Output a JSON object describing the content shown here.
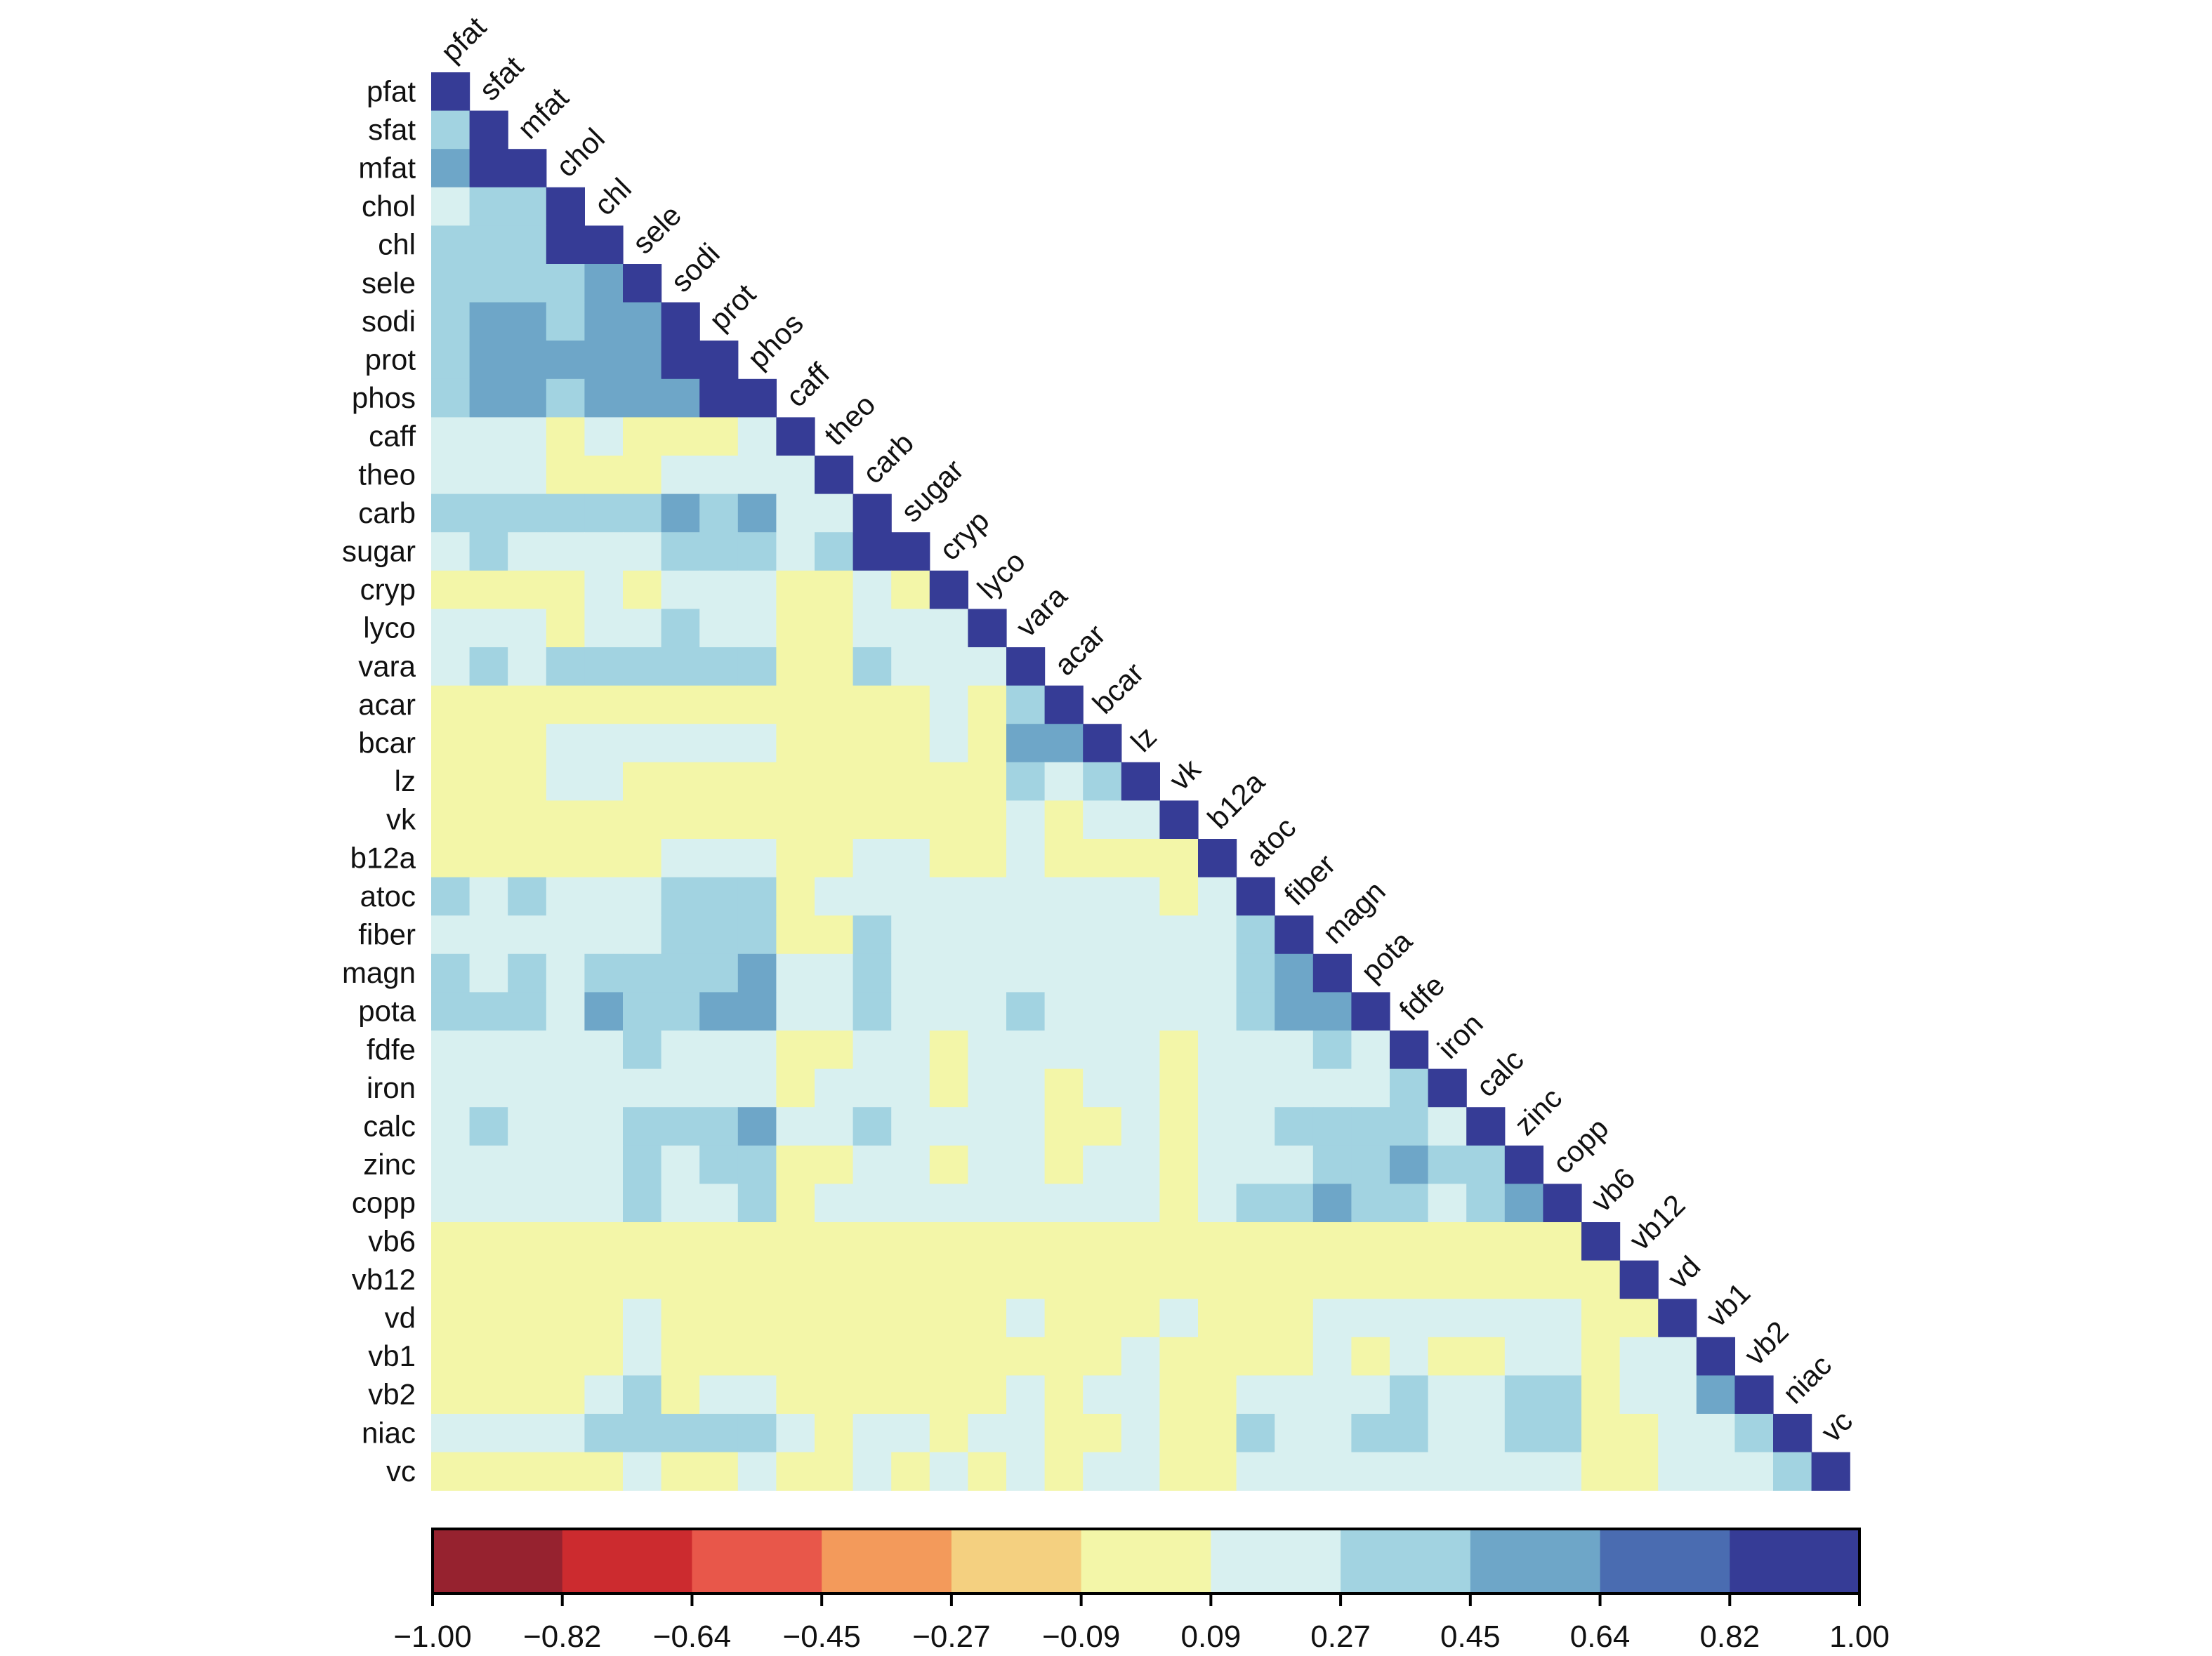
{
  "chart_data": {
    "type": "heatmap",
    "subtype": "lower-triangular correlation matrix",
    "variables": [
      "pfat",
      "sfat",
      "mfat",
      "chol",
      "chl",
      "sele",
      "sodi",
      "prot",
      "phos",
      "caff",
      "theo",
      "carb",
      "sugar",
      "cryp",
      "lyco",
      "vara",
      "acar",
      "bcar",
      "lz",
      "vk",
      "b12a",
      "atoc",
      "fiber",
      "magn",
      "pota",
      "fdfe",
      "iron",
      "calc",
      "zinc",
      "copp",
      "vb6",
      "vb12",
      "vd",
      "vb1",
      "vb2",
      "niac",
      "vc"
    ],
    "bin_colors": [
      "#96222f",
      "#cc2b2f",
      "#e8574a",
      "#f39a5b",
      "#f4d080",
      "#f3f6a8",
      "#d8f0f0",
      "#a2d3e1",
      "#6ea6c8",
      "#4a6cb1",
      "#363c96"
    ],
    "rows_bin_index": [
      [
        10
      ],
      [
        7,
        10
      ],
      [
        8,
        10,
        10
      ],
      [
        6,
        7,
        7,
        10
      ],
      [
        7,
        7,
        7,
        10,
        10
      ],
      [
        7,
        7,
        7,
        7,
        8,
        10
      ],
      [
        7,
        8,
        8,
        7,
        8,
        8,
        10
      ],
      [
        7,
        8,
        8,
        8,
        8,
        8,
        10,
        10
      ],
      [
        7,
        8,
        8,
        7,
        8,
        8,
        8,
        10,
        10
      ],
      [
        6,
        6,
        6,
        5,
        6,
        5,
        5,
        5,
        6,
        10
      ],
      [
        6,
        6,
        6,
        5,
        5,
        5,
        6,
        6,
        6,
        6,
        10
      ],
      [
        7,
        7,
        7,
        7,
        7,
        7,
        8,
        7,
        8,
        6,
        6,
        10
      ],
      [
        6,
        7,
        6,
        6,
        6,
        6,
        7,
        7,
        7,
        6,
        7,
        10,
        10
      ],
      [
        5,
        5,
        5,
        5,
        6,
        5,
        6,
        6,
        6,
        5,
        5,
        6,
        5,
        10
      ],
      [
        6,
        6,
        6,
        5,
        6,
        6,
        7,
        6,
        6,
        5,
        5,
        6,
        6,
        6,
        10
      ],
      [
        6,
        7,
        6,
        7,
        7,
        7,
        7,
        7,
        7,
        5,
        5,
        7,
        6,
        6,
        6,
        10
      ],
      [
        5,
        5,
        5,
        5,
        5,
        5,
        5,
        5,
        5,
        5,
        5,
        5,
        5,
        6,
        5,
        7,
        10
      ],
      [
        5,
        5,
        5,
        6,
        6,
        6,
        6,
        6,
        6,
        5,
        5,
        5,
        5,
        6,
        5,
        8,
        8,
        10
      ],
      [
        5,
        5,
        5,
        6,
        6,
        5,
        5,
        5,
        5,
        5,
        5,
        5,
        5,
        5,
        5,
        7,
        6,
        7,
        10
      ],
      [
        5,
        5,
        5,
        5,
        5,
        5,
        5,
        5,
        5,
        5,
        5,
        5,
        5,
        5,
        5,
        6,
        5,
        6,
        6,
        10
      ],
      [
        5,
        5,
        5,
        5,
        5,
        5,
        6,
        6,
        6,
        5,
        5,
        6,
        6,
        5,
        5,
        6,
        5,
        5,
        5,
        5,
        10
      ],
      [
        7,
        6,
        7,
        6,
        6,
        6,
        7,
        7,
        7,
        5,
        6,
        6,
        6,
        6,
        6,
        6,
        6,
        6,
        6,
        5,
        6,
        10
      ],
      [
        6,
        6,
        6,
        6,
        6,
        6,
        7,
        7,
        7,
        5,
        5,
        7,
        6,
        6,
        6,
        6,
        6,
        6,
        6,
        6,
        6,
        7,
        10
      ],
      [
        7,
        6,
        7,
        6,
        7,
        7,
        7,
        7,
        8,
        6,
        6,
        7,
        6,
        6,
        6,
        6,
        6,
        6,
        6,
        6,
        6,
        7,
        8,
        10
      ],
      [
        7,
        7,
        7,
        6,
        8,
        7,
        7,
        8,
        8,
        6,
        6,
        7,
        6,
        6,
        6,
        7,
        6,
        6,
        6,
        6,
        6,
        7,
        8,
        8,
        10
      ],
      [
        6,
        6,
        6,
        6,
        6,
        7,
        6,
        6,
        6,
        5,
        5,
        6,
        6,
        5,
        6,
        6,
        6,
        6,
        6,
        5,
        6,
        6,
        6,
        7,
        6,
        10
      ],
      [
        6,
        6,
        6,
        6,
        6,
        6,
        6,
        6,
        6,
        5,
        6,
        6,
        6,
        5,
        6,
        6,
        5,
        6,
        6,
        5,
        6,
        6,
        6,
        6,
        6,
        7,
        10
      ],
      [
        6,
        7,
        6,
        6,
        6,
        7,
        7,
        7,
        8,
        6,
        6,
        7,
        6,
        6,
        6,
        6,
        5,
        5,
        6,
        5,
        6,
        6,
        7,
        7,
        7,
        7,
        6,
        10
      ],
      [
        6,
        6,
        6,
        6,
        6,
        7,
        6,
        7,
        7,
        5,
        5,
        6,
        6,
        5,
        6,
        6,
        5,
        6,
        6,
        5,
        6,
        6,
        6,
        7,
        7,
        8,
        7,
        7,
        10
      ],
      [
        6,
        6,
        6,
        6,
        6,
        7,
        6,
        6,
        7,
        5,
        6,
        6,
        6,
        6,
        6,
        6,
        6,
        6,
        6,
        5,
        6,
        7,
        7,
        8,
        7,
        7,
        6,
        7,
        8,
        10
      ],
      [
        5,
        5,
        5,
        5,
        5,
        5,
        5,
        5,
        5,
        5,
        5,
        5,
        5,
        5,
        5,
        5,
        5,
        5,
        5,
        5,
        5,
        5,
        5,
        5,
        5,
        5,
        5,
        5,
        5,
        5,
        10
      ],
      [
        5,
        5,
        5,
        5,
        5,
        5,
        5,
        5,
        5,
        5,
        5,
        5,
        5,
        5,
        5,
        5,
        5,
        5,
        5,
        5,
        5,
        5,
        5,
        5,
        5,
        5,
        5,
        5,
        5,
        5,
        5,
        10
      ],
      [
        5,
        5,
        5,
        5,
        5,
        6,
        5,
        5,
        5,
        5,
        5,
        5,
        5,
        5,
        5,
        6,
        5,
        5,
        5,
        6,
        5,
        5,
        5,
        6,
        6,
        6,
        6,
        6,
        6,
        6,
        5,
        5,
        10
      ],
      [
        5,
        5,
        5,
        5,
        5,
        6,
        5,
        5,
        5,
        5,
        5,
        5,
        5,
        5,
        5,
        5,
        5,
        5,
        6,
        5,
        5,
        5,
        5,
        6,
        5,
        6,
        5,
        5,
        6,
        6,
        5,
        6,
        6,
        10
      ],
      [
        5,
        5,
        5,
        5,
        6,
        7,
        5,
        6,
        6,
        5,
        5,
        5,
        5,
        5,
        5,
        6,
        5,
        6,
        6,
        5,
        5,
        6,
        6,
        6,
        6,
        7,
        6,
        6,
        7,
        7,
        5,
        6,
        6,
        8,
        10
      ],
      [
        6,
        6,
        6,
        6,
        7,
        7,
        7,
        7,
        7,
        6,
        5,
        6,
        6,
        5,
        6,
        6,
        5,
        5,
        6,
        5,
        5,
        7,
        6,
        6,
        7,
        7,
        6,
        6,
        7,
        7,
        5,
        5,
        6,
        6,
        7,
        10
      ],
      [
        5,
        5,
        5,
        5,
        5,
        6,
        5,
        5,
        6,
        5,
        5,
        6,
        5,
        6,
        5,
        6,
        5,
        6,
        6,
        5,
        5,
        6,
        6,
        6,
        6,
        6,
        6,
        6,
        6,
        6,
        5,
        5,
        6,
        6,
        6,
        7,
        10
      ]
    ],
    "colorbar": {
      "ticks": [
        "−1.00",
        "−0.82",
        "−0.64",
        "−0.45",
        "−0.27",
        "−0.09",
        "0.09",
        "0.27",
        "0.45",
        "0.64",
        "0.82",
        "1.00"
      ],
      "range": [
        -1.0,
        1.0
      ]
    },
    "title": "",
    "xlabel": "",
    "ylabel": ""
  }
}
